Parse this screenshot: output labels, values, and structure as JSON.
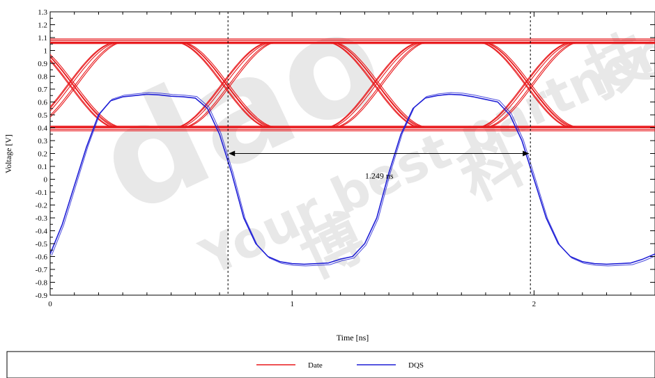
{
  "chart_data": {
    "type": "line",
    "xlabel": "Time [ns]",
    "ylabel": "Voltage [V]",
    "xlim": [
      0,
      2.5
    ],
    "ylim": [
      -0.9,
      1.3
    ],
    "x_ticks": [
      0,
      1,
      2
    ],
    "x_tick_labels": [
      "0",
      "1",
      "2"
    ],
    "y_ticks": [
      -0.9,
      -0.8,
      -0.7,
      -0.6,
      -0.5,
      -0.4,
      -0.3,
      -0.2,
      -0.1,
      0,
      0.1,
      0.2,
      0.3,
      0.4,
      0.5,
      0.6,
      0.7,
      0.8,
      0.9,
      1,
      1.1,
      1.2,
      1.3
    ],
    "y_tick_labels": [
      "-0.9",
      "-0.8",
      "-0.7",
      "-0.6",
      "-0.5",
      "-0.4",
      "-0.3",
      "-0.2",
      "-0.1",
      "0",
      "0.1",
      "0.2",
      "0.3",
      "0.4",
      "0.5",
      "0.6",
      "0.7",
      "0.8",
      "0.9",
      "1",
      "1.1",
      "1.2",
      "1.3"
    ],
    "grid": false,
    "legend_position": "bottom",
    "series": [
      {
        "name": "Date",
        "color": "#e8191c",
        "kind": "eye-diagram",
        "high": 1.065,
        "low": 0.4,
        "crossing_level": 0.74,
        "crossing_times": [
          0.09,
          0.725,
          1.35,
          1.975
        ]
      },
      {
        "name": "DQS",
        "color": "#1f1fd6",
        "x": [
          0,
          0.05,
          0.1,
          0.15,
          0.2,
          0.25,
          0.3,
          0.35,
          0.4,
          0.45,
          0.5,
          0.55,
          0.6,
          0.65,
          0.7,
          0.75,
          0.8,
          0.85,
          0.9,
          0.95,
          1.0,
          1.05,
          1.1,
          1.15,
          1.2,
          1.25,
          1.3,
          1.35,
          1.4,
          1.45,
          1.5,
          1.55,
          1.6,
          1.65,
          1.7,
          1.75,
          1.8,
          1.85,
          1.9,
          1.95,
          2.0,
          2.05,
          2.1,
          2.15,
          2.2,
          2.25,
          2.3,
          2.35,
          2.4,
          2.45,
          2.5
        ],
        "y": [
          -0.58,
          -0.35,
          -0.05,
          0.25,
          0.5,
          0.61,
          0.64,
          0.65,
          0.66,
          0.655,
          0.645,
          0.64,
          0.63,
          0.55,
          0.35,
          0.05,
          -0.3,
          -0.5,
          -0.6,
          -0.64,
          -0.655,
          -0.66,
          -0.655,
          -0.65,
          -0.62,
          -0.6,
          -0.5,
          -0.3,
          0.05,
          0.35,
          0.55,
          0.63,
          0.65,
          0.66,
          0.655,
          0.64,
          0.62,
          0.6,
          0.5,
          0.3,
          0.0,
          -0.3,
          -0.5,
          -0.6,
          -0.64,
          -0.655,
          -0.66,
          -0.655,
          -0.65,
          -0.62,
          -0.58
        ]
      }
    ],
    "markers": {
      "vlines": [
        0.735,
        1.985
      ],
      "interval_label": "1.249 ns",
      "interval_arrow_y": 0.2
    },
    "legend": [
      {
        "label": "Date",
        "color": "#e8191c"
      },
      {
        "label": "DQS",
        "color": "#1f1fd6"
      }
    ]
  },
  "watermark": {
    "logo_text": "dao",
    "slogan": "Your best partner",
    "chars": [
      "科",
      "博",
      "技",
      "a"
    ]
  }
}
